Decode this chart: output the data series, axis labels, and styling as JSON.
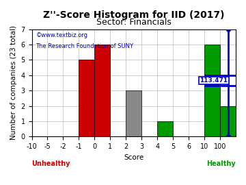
{
  "title": "Z''-Score Histogram for IID (2017)",
  "subtitle": "Sector: Financials",
  "xlabel": "Score",
  "ylabel": "Number of companies (23 total)",
  "watermark1": "©www.textbiz.org",
  "watermark2": "The Research Foundation of SUNY",
  "xtick_labels": [
    "-10",
    "-5",
    "-2",
    "-1",
    "0",
    "1",
    "2",
    "3",
    "4",
    "5",
    "6",
    "10",
    "100"
  ],
  "counts": [
    0,
    0,
    0,
    5,
    6,
    0,
    3,
    0,
    1,
    0,
    0,
    6,
    2
  ],
  "bar_colors": [
    "#cc0000",
    "#cc0000",
    "#cc0000",
    "#cc0000",
    "#cc0000",
    "#cc0000",
    "#888888",
    "#888888",
    "#009900",
    "#009900",
    "#009900",
    "#009900",
    "#009900"
  ],
  "unhealthy_color": "#cc0000",
  "healthy_color": "#009900",
  "score_label": "113.471",
  "score_line_color": "#0000cc",
  "score_bin_index": 12,
  "ylim": [
    0,
    7
  ],
  "yticks": [
    0,
    1,
    2,
    3,
    4,
    5,
    6,
    7
  ],
  "background_color": "#ffffff",
  "grid_color": "#bbbbbb",
  "title_fontsize": 10,
  "subtitle_fontsize": 9,
  "axis_fontsize": 7.5,
  "tick_fontsize": 7
}
